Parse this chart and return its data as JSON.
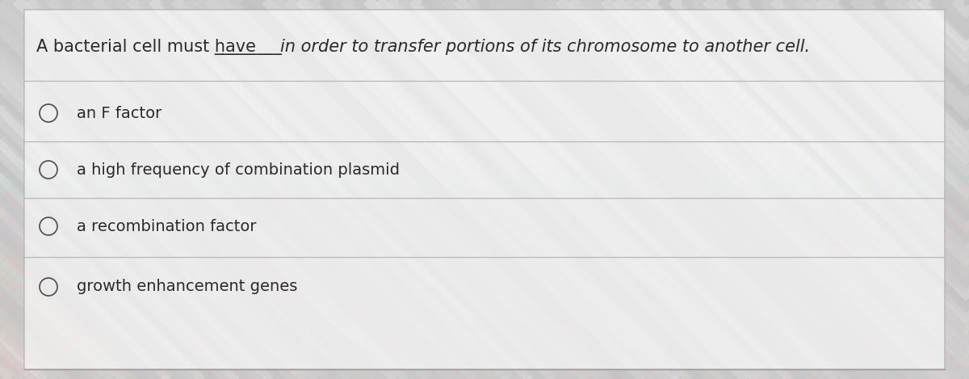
{
  "question_text": "A bacterial cell must have",
  "blank": "________",
  "question_rest": "in order to transfer portions of its chromosome to another cell.",
  "options": [
    "an F factor",
    "a high frequency of combination plasmid",
    "a recombination factor",
    "growth enhancement genes"
  ],
  "text_color": "#2a2a2a",
  "font_size_question": 15,
  "font_size_options": 14,
  "figsize": [
    12.0,
    4.69
  ],
  "dpi": 100,
  "stripe_colors": [
    "#c8c8c8",
    "#d0d0d0",
    "#c4c4c4",
    "#cccccc",
    "#d4d4d4"
  ],
  "bg_base": "#c8c8c8"
}
